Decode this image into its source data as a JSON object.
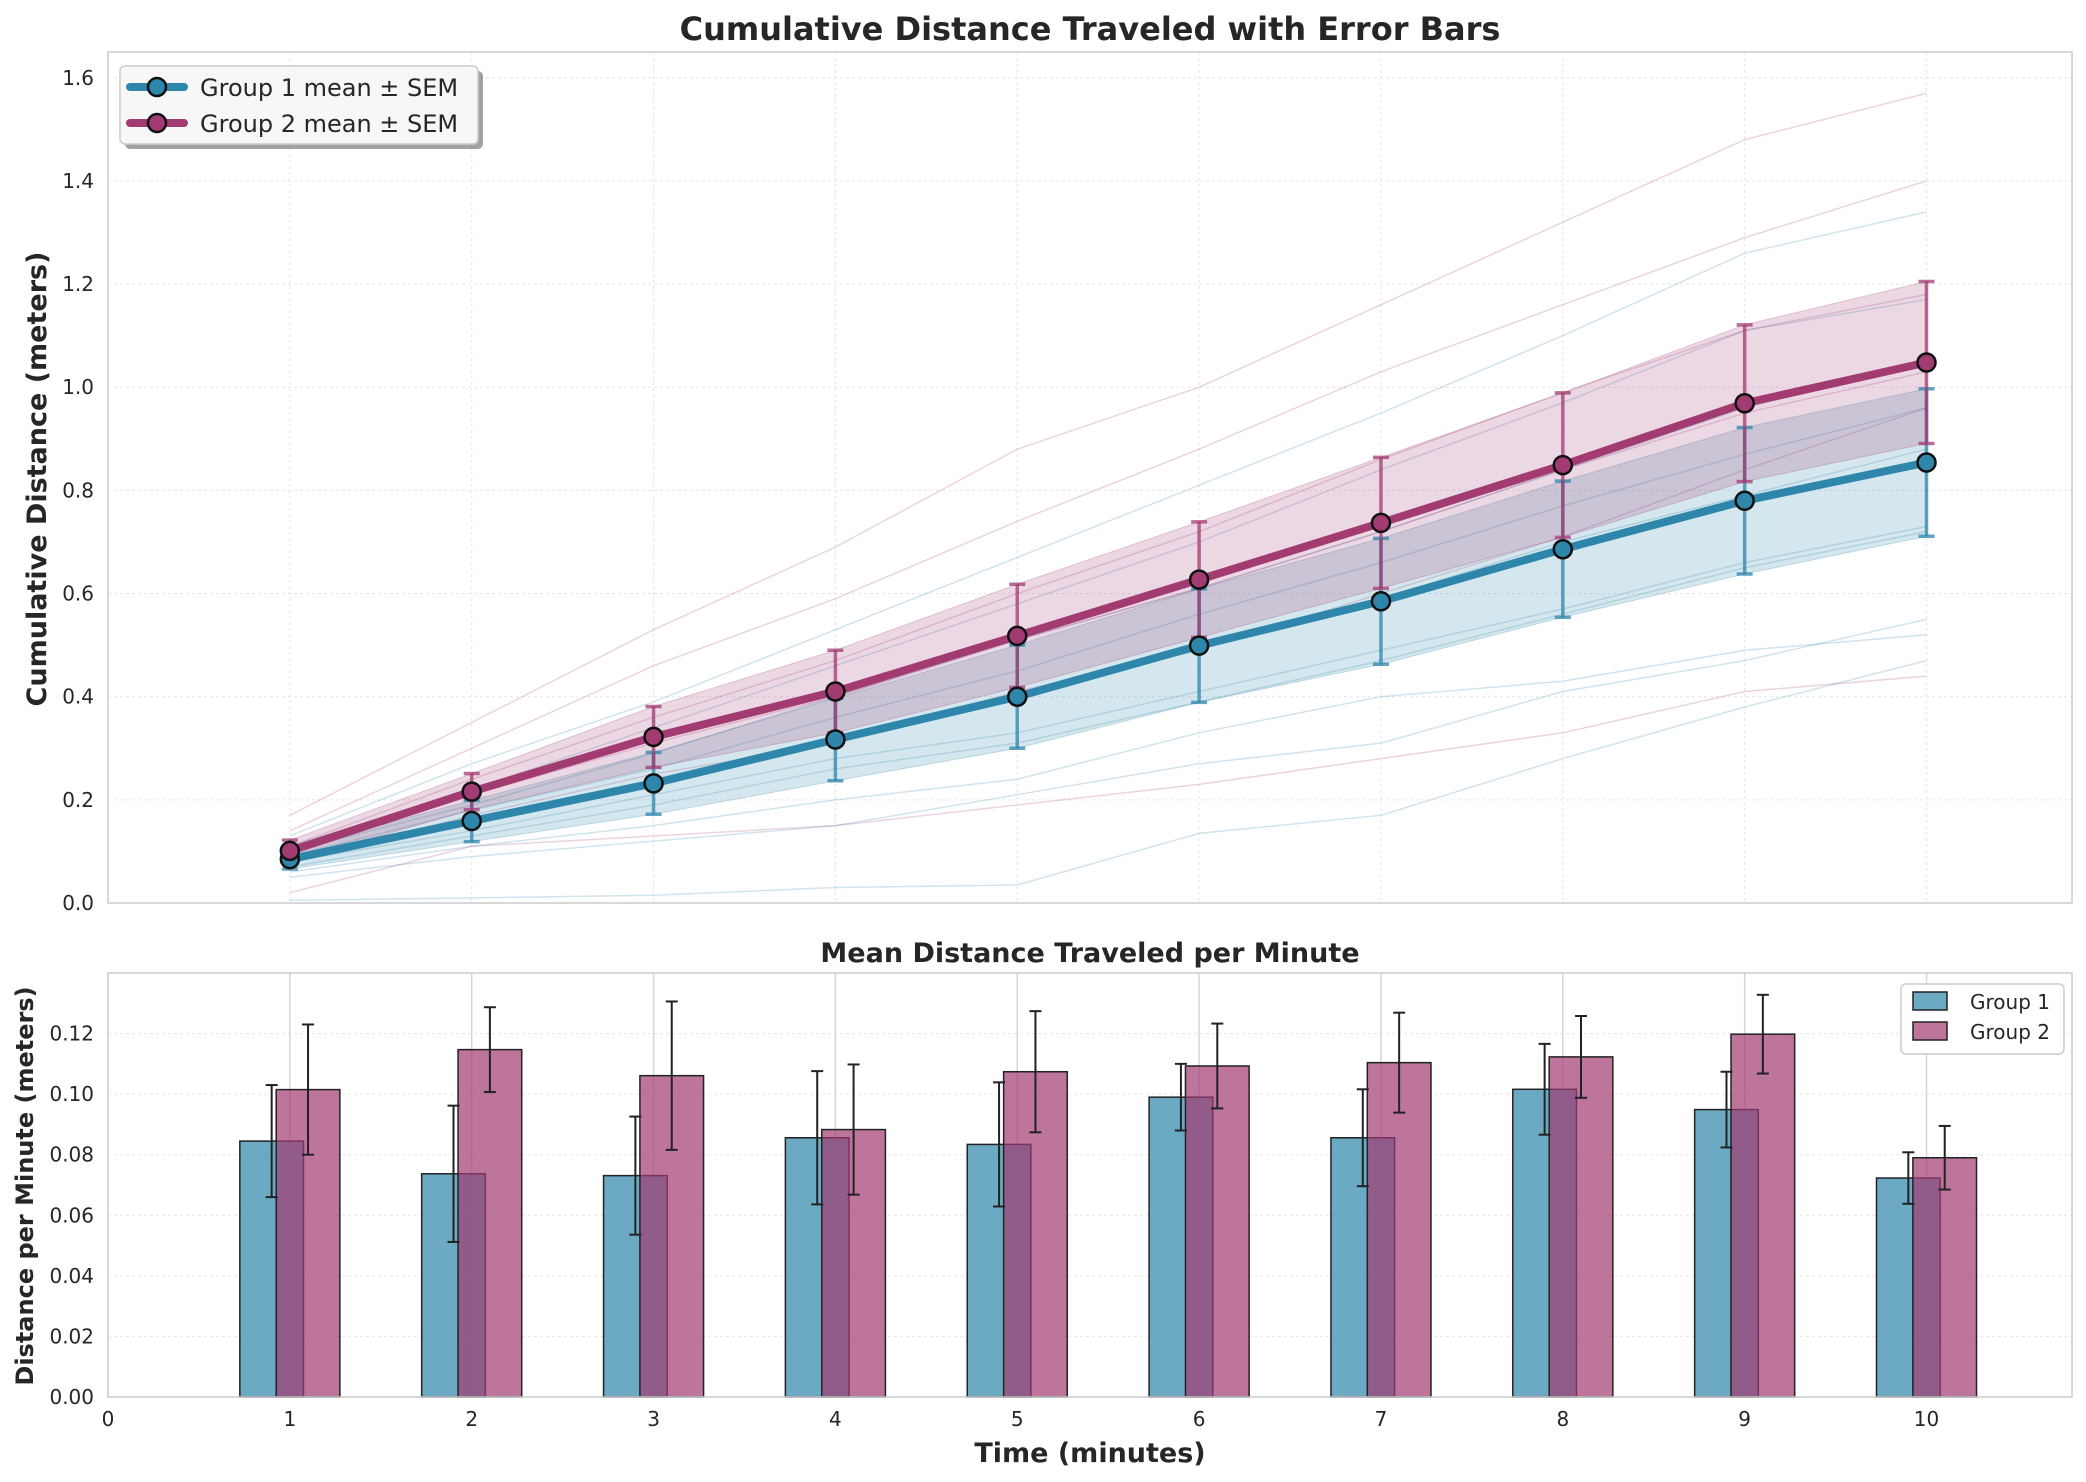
{
  "colors": {
    "group1": "#2e86ab",
    "group2": "#a23b72",
    "grid": "#e6e6e6",
    "spine": "#cccccc",
    "text": "#262626"
  },
  "chart_data": [
    {
      "type": "line",
      "title": "Cumulative Distance Traveled with Error Bars",
      "xlabel": "",
      "ylabel": "Cumulative Distance (meters)",
      "xlim": [
        0,
        10.8
      ],
      "ylim": [
        0,
        1.65
      ],
      "yticks": [
        "0.0",
        "0.2",
        "0.4",
        "0.6",
        "0.8",
        "1.0",
        "1.2",
        "1.4",
        "1.6"
      ],
      "x": [
        1,
        2,
        3,
        4,
        5,
        6,
        7,
        8,
        9,
        10
      ],
      "grid": true,
      "legend_position": "top-left",
      "series": [
        {
          "name": "Group 1 mean ± SEM",
          "color": "#2e86ab",
          "values": [
            0.085,
            0.159,
            0.232,
            0.317,
            0.4,
            0.499,
            0.585,
            0.686,
            0.78,
            0.854
          ],
          "sem": [
            0.019,
            0.04,
            0.06,
            0.08,
            0.1,
            0.11,
            0.122,
            0.132,
            0.142,
            0.143
          ]
        },
        {
          "name": "Group 2 mean ± SEM",
          "color": "#a23b72",
          "values": [
            0.101,
            0.216,
            0.322,
            0.41,
            0.518,
            0.627,
            0.737,
            0.849,
            0.969,
            1.048
          ],
          "sem": [
            0.021,
            0.035,
            0.059,
            0.08,
            0.1,
            0.112,
            0.127,
            0.14,
            0.152,
            0.157
          ]
        }
      ],
      "individual_traces": [
        {
          "group": 1,
          "values": [
            0.13,
            0.27,
            0.39,
            0.53,
            0.67,
            0.81,
            0.95,
            1.1,
            1.26,
            1.34
          ]
        },
        {
          "group": 1,
          "values": [
            0.11,
            0.22,
            0.34,
            0.46,
            0.58,
            0.7,
            0.84,
            0.97,
            1.11,
            1.17
          ]
        },
        {
          "group": 1,
          "values": [
            0.1,
            0.19,
            0.29,
            0.4,
            0.51,
            0.61,
            0.72,
            0.84,
            0.96,
            1.05
          ]
        },
        {
          "group": 1,
          "values": [
            0.09,
            0.18,
            0.26,
            0.36,
            0.45,
            0.56,
            0.66,
            0.77,
            0.87,
            0.96
          ]
        },
        {
          "group": 1,
          "values": [
            0.08,
            0.16,
            0.24,
            0.32,
            0.4,
            0.5,
            0.59,
            0.7,
            0.79,
            0.88
          ]
        },
        {
          "group": 1,
          "values": [
            0.08,
            0.14,
            0.21,
            0.28,
            0.33,
            0.41,
            0.49,
            0.57,
            0.66,
            0.73
          ]
        },
        {
          "group": 1,
          "values": [
            0.07,
            0.13,
            0.19,
            0.26,
            0.31,
            0.39,
            0.47,
            0.56,
            0.65,
            0.72
          ]
        },
        {
          "group": 1,
          "values": [
            0.06,
            0.11,
            0.15,
            0.2,
            0.24,
            0.33,
            0.4,
            0.43,
            0.49,
            0.52
          ]
        },
        {
          "group": 1,
          "values": [
            0.05,
            0.09,
            0.12,
            0.15,
            0.21,
            0.27,
            0.31,
            0.41,
            0.47,
            0.55
          ]
        },
        {
          "group": 1,
          "values": [
            0.005,
            0.01,
            0.015,
            0.03,
            0.035,
            0.135,
            0.17,
            0.28,
            0.38,
            0.47
          ]
        },
        {
          "group": 2,
          "values": [
            0.17,
            0.35,
            0.53,
            0.69,
            0.88,
            1.0,
            1.16,
            1.32,
            1.48,
            1.57
          ]
        },
        {
          "group": 2,
          "values": [
            0.14,
            0.3,
            0.46,
            0.59,
            0.74,
            0.88,
            1.03,
            1.16,
            1.29,
            1.4
          ]
        },
        {
          "group": 2,
          "values": [
            0.11,
            0.24,
            0.36,
            0.47,
            0.6,
            0.72,
            0.86,
            0.99,
            1.11,
            1.18
          ]
        },
        {
          "group": 2,
          "values": [
            0.1,
            0.21,
            0.31,
            0.4,
            0.51,
            0.61,
            0.72,
            0.84,
            0.95,
            1.03
          ]
        },
        {
          "group": 2,
          "values": [
            0.08,
            0.17,
            0.25,
            0.31,
            0.41,
            0.49,
            0.6,
            0.71,
            0.84,
            0.96
          ]
        },
        {
          "group": 2,
          "values": [
            0.02,
            0.11,
            0.13,
            0.15,
            0.19,
            0.23,
            0.28,
            0.33,
            0.41,
            0.44
          ]
        }
      ]
    },
    {
      "type": "bar",
      "title": "Mean Distance Traveled per Minute",
      "xlabel": "Time (minutes)",
      "ylabel": "Distance per Minute (meters)",
      "xlim": [
        0,
        10.8
      ],
      "xticks": [
        "0",
        "1",
        "2",
        "3",
        "4",
        "5",
        "6",
        "7",
        "8",
        "9",
        "10"
      ],
      "ylim": [
        0,
        0.14
      ],
      "yticks": [
        "0.00",
        "0.02",
        "0.04",
        "0.06",
        "0.08",
        "0.10",
        "0.12"
      ],
      "categories": [
        "1",
        "2",
        "3",
        "4",
        "5",
        "6",
        "7",
        "8",
        "9",
        "10"
      ],
      "grid": true,
      "legend_position": "top-right",
      "series": [
        {
          "name": "Group 1",
          "color": "#2e86ab",
          "values": [
            0.0845,
            0.0737,
            0.0731,
            0.0856,
            0.0834,
            0.099,
            0.0856,
            0.1016,
            0.0949,
            0.0723
          ],
          "error": [
            0.0185,
            0.0225,
            0.0195,
            0.022,
            0.0205,
            0.011,
            0.016,
            0.015,
            0.0125,
            0.0085
          ]
        },
        {
          "name": "Group 2",
          "color": "#a23b72",
          "values": [
            0.1015,
            0.1147,
            0.1061,
            0.0883,
            0.1074,
            0.1093,
            0.1104,
            0.1123,
            0.1198,
            0.079
          ],
          "error": [
            0.0215,
            0.014,
            0.0245,
            0.0215,
            0.02,
            0.014,
            0.0165,
            0.0135,
            0.013,
            0.0105
          ]
        }
      ]
    }
  ]
}
